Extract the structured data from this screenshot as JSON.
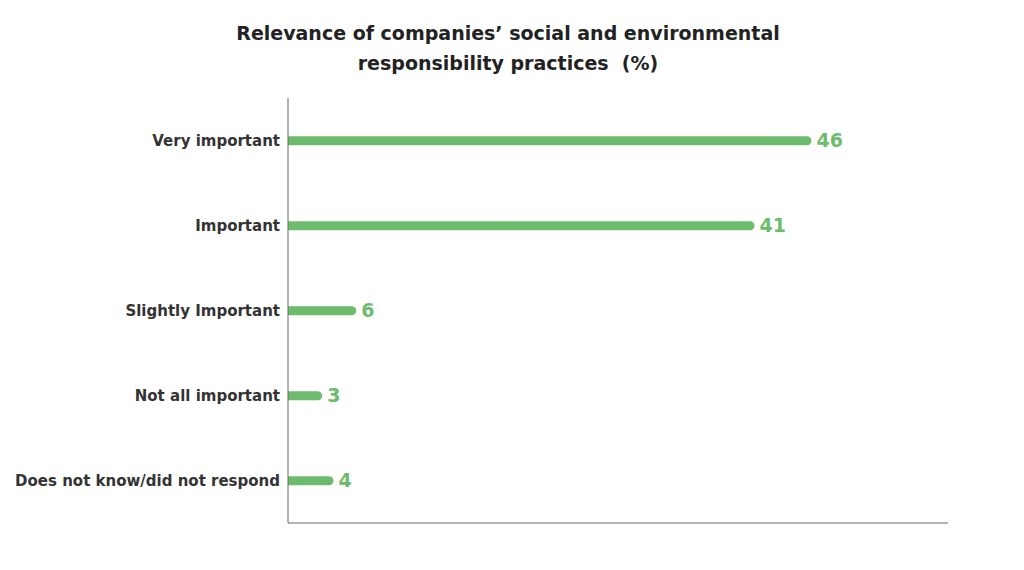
{
  "chart_data": {
    "type": "bar",
    "title": "Relevance of companies’ social and environmental\nresponsibility practices  (%)",
    "categories": [
      "Does not know/did not respond",
      "Not all important",
      "Slightly Important",
      "Important",
      "Very important"
    ],
    "values": [
      4,
      3,
      6,
      41,
      46
    ],
    "color": "#6dbb6d",
    "orientation": "horizontal",
    "xlim": [
      0,
      58
    ],
    "data_labels": true,
    "tick_labels": "y",
    "grid": false
  }
}
